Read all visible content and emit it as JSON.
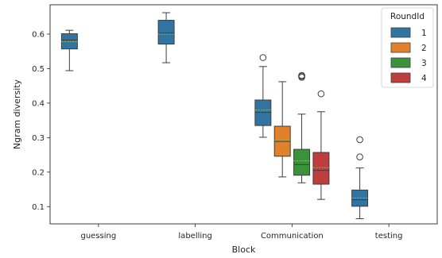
{
  "chart_data": {
    "type": "boxplot",
    "xlabel": "Block",
    "ylabel": "Ngram diversity",
    "categories": [
      "guessing",
      "labelling",
      "Communication",
      "testing"
    ],
    "ylim": [
      0.05,
      0.685
    ],
    "yticks": [
      0.1,
      0.2,
      0.3,
      0.4,
      0.5,
      0.6
    ],
    "grid": false,
    "legend": {
      "title": "RoundId",
      "placement": "top-right",
      "entries": [
        "1",
        "2",
        "3",
        "4"
      ]
    },
    "series_colors": {
      "1": "#3274a1",
      "2": "#e1812c",
      "3": "#3a923a",
      "4": "#c03d3e"
    },
    "mean_line_color": "#8fbc5a",
    "median_line_color": "#3d3d3d",
    "boxes": [
      {
        "category": "guessing",
        "round": "1",
        "q1": 0.557,
        "median": 0.583,
        "mean": 0.578,
        "q3": 0.601,
        "whisker_low": 0.494,
        "whisker_high": 0.611,
        "outliers": []
      },
      {
        "category": "labelling",
        "round": "1",
        "q1": 0.571,
        "median": 0.603,
        "mean": 0.6,
        "q3": 0.64,
        "whisker_low": 0.517,
        "whisker_high": 0.662,
        "outliers": []
      },
      {
        "category": "Communication",
        "round": "1",
        "q1": 0.335,
        "median": 0.373,
        "mean": 0.38,
        "q3": 0.409,
        "whisker_low": 0.301,
        "whisker_high": 0.506,
        "outliers": [
          0.532
        ]
      },
      {
        "category": "Communication",
        "round": "2",
        "q1": 0.246,
        "median": 0.289,
        "mean": 0.293,
        "q3": 0.333,
        "whisker_low": 0.186,
        "whisker_high": 0.462,
        "outliers": []
      },
      {
        "category": "Communication",
        "round": "3",
        "q1": 0.191,
        "median": 0.222,
        "mean": 0.233,
        "q3": 0.266,
        "whisker_low": 0.169,
        "whisker_high": 0.368,
        "outliers": [
          0.475,
          0.478,
          0.48
        ]
      },
      {
        "category": "Communication",
        "round": "4",
        "q1": 0.165,
        "median": 0.205,
        "mean": 0.213,
        "q3": 0.257,
        "whisker_low": 0.121,
        "whisker_high": 0.375,
        "outliers": [
          0.427
        ]
      },
      {
        "category": "testing",
        "round": "1",
        "q1": 0.101,
        "median": 0.12,
        "mean": 0.125,
        "q3": 0.148,
        "whisker_low": 0.065,
        "whisker_high": 0.212,
        "outliers": [
          0.244,
          0.294
        ]
      }
    ]
  }
}
